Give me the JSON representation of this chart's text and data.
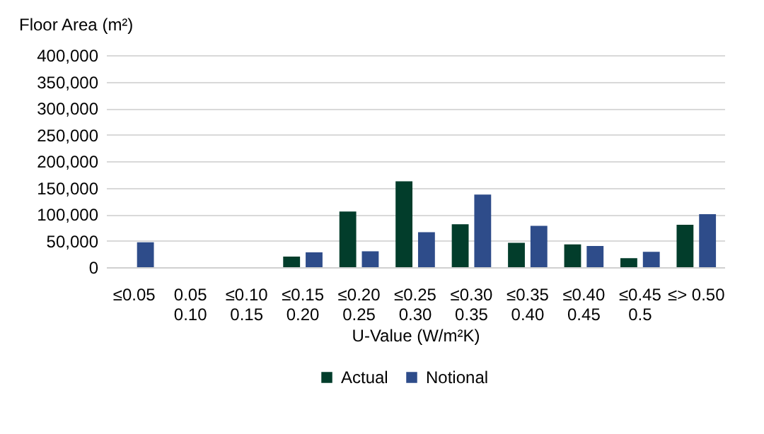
{
  "chart_data": {
    "type": "bar",
    "ylabel": "Floor Area (m²)",
    "xlabel": "U-Value (W/m²K)",
    "categories": [
      "≤0.05",
      "0.05\n0.10",
      "≤0.10\n0.15",
      "≤0.15\n0.20",
      "≤0.20\n0.25",
      "≤0.25\n0.30",
      "≤0.30\n0.35",
      "≤0.35\n0.40",
      "≤0.40\n0.45",
      "≤0.45\n0.5",
      "≤> 0.50"
    ],
    "series": [
      {
        "name": "Actual",
        "color": "#023d2b",
        "values": [
          0,
          0,
          0,
          20000,
          105000,
          162000,
          81000,
          46000,
          43000,
          17000,
          80000
        ]
      },
      {
        "name": "Notional",
        "color": "#2e4c8a",
        "values": [
          47000,
          0,
          0,
          28000,
          30000,
          66000,
          137000,
          78000,
          40000,
          29000,
          100000
        ]
      }
    ],
    "ylim": [
      0,
      400000
    ],
    "yticks": [
      0,
      {
        "value": 50000,
        "label": "50,000"
      },
      {
        "value": 100000,
        "label": "100,000"
      },
      {
        "value": 150000,
        "label": "150,000"
      },
      {
        "value": 200000,
        "label": "200,000"
      },
      {
        "value": 250000,
        "label": "250,000"
      },
      {
        "value": 300000,
        "label": "300,000"
      },
      {
        "value": 350000,
        "label": "350,000"
      },
      {
        "value": 400000,
        "label": "400,000"
      }
    ],
    "grid": "y",
    "legend": "bottom"
  }
}
